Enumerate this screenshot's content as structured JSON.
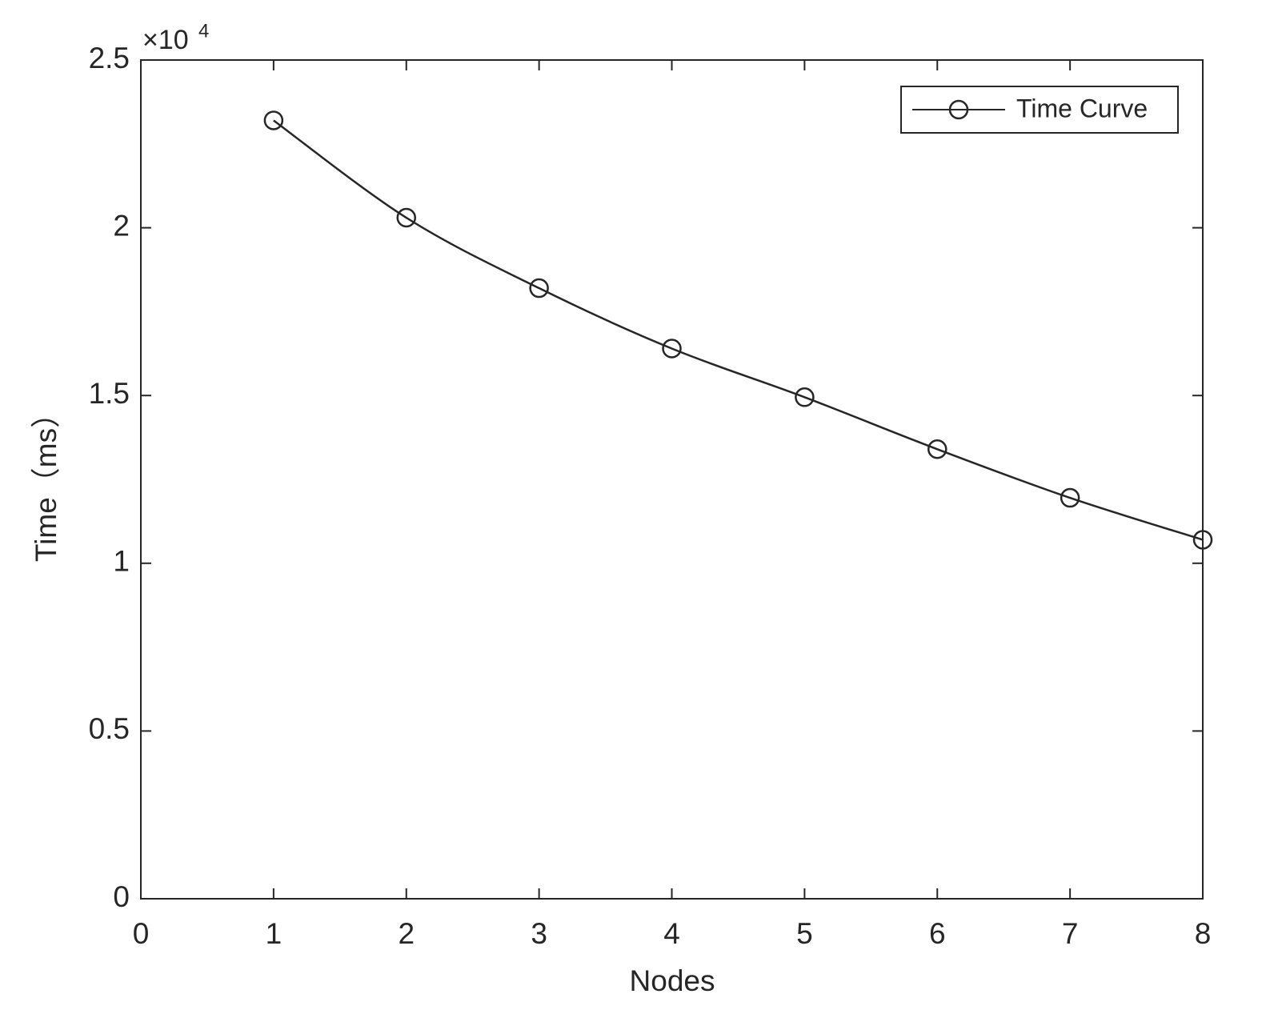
{
  "chart_data": {
    "type": "line",
    "x_label": "Nodes",
    "y_label": "Time（ms）",
    "y_multiplier": {
      "base": "×10",
      "exponent": "4"
    },
    "x": [
      1,
      2,
      3,
      4,
      5,
      6,
      7,
      8
    ],
    "series": [
      {
        "name": "Time Curve",
        "color": "#262626",
        "marker": "circle",
        "values": [
          23200,
          20300,
          18200,
          16400,
          14950,
          13400,
          11950,
          10700
        ]
      }
    ],
    "xlim": [
      0,
      8
    ],
    "xticks": [
      0,
      1,
      2,
      3,
      4,
      5,
      6,
      7,
      8
    ],
    "ylim": [
      0,
      25000
    ],
    "yticks": [
      0,
      {
        "value": 5000,
        "label": "0.5"
      },
      {
        "value": 10000,
        "label": "1"
      },
      {
        "value": 15000,
        "label": "1.5"
      },
      {
        "value": 20000,
        "label": "2"
      },
      {
        "value": 25000,
        "label": "2.5"
      }
    ],
    "grid": false,
    "legend": "upper right"
  }
}
